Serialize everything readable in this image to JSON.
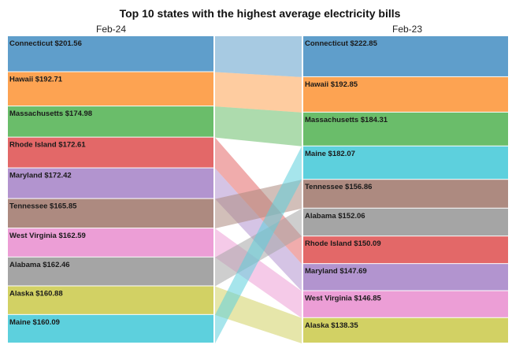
{
  "chart_data": {
    "type": "slope-ribbon",
    "title": "Top 10 states with the highest average electricity bills",
    "columns": [
      "Feb-24",
      "Feb-23"
    ],
    "left": [
      {
        "state": "Connecticut",
        "value": 201.56,
        "label": "Connecticut $201.56"
      },
      {
        "state": "Hawaii",
        "value": 192.71,
        "label": "Hawaii $192.71"
      },
      {
        "state": "Massachusetts",
        "value": 174.98,
        "label": "Massachusetts $174.98"
      },
      {
        "state": "Rhode Island",
        "value": 172.61,
        "label": "Rhode Island $172.61"
      },
      {
        "state": "Maryland",
        "value": 172.42,
        "label": "Maryland $172.42"
      },
      {
        "state": "Tennessee",
        "value": 165.85,
        "label": "Tennessee $165.85"
      },
      {
        "state": "West Virginia",
        "value": 162.59,
        "label": "West Virginia $162.59"
      },
      {
        "state": "Alabama",
        "value": 162.46,
        "label": "Alabama $162.46"
      },
      {
        "state": "Alaska",
        "value": 160.88,
        "label": "Alaska $160.88"
      },
      {
        "state": "Maine",
        "value": 160.09,
        "label": "Maine $160.09"
      }
    ],
    "right": [
      {
        "state": "Connecticut",
        "value": 222.85,
        "label": "Connecticut $222.85"
      },
      {
        "state": "Hawaii",
        "value": 192.85,
        "label": "Hawaii $192.85"
      },
      {
        "state": "Massachusetts",
        "value": 184.31,
        "label": "Massachusetts $184.31"
      },
      {
        "state": "Maine",
        "value": 182.07,
        "label": "Maine $182.07"
      },
      {
        "state": "Tennessee",
        "value": 156.86,
        "label": "Tennessee $156.86"
      },
      {
        "state": "Alabama",
        "value": 152.06,
        "label": "Alabama $152.06"
      },
      {
        "state": "Rhode Island",
        "value": 150.09,
        "label": "Rhode Island $150.09"
      },
      {
        "state": "Maryland",
        "value": 147.69,
        "label": "Maryland $147.69"
      },
      {
        "state": "West Virginia",
        "value": 146.85,
        "label": "West Virginia $146.85"
      },
      {
        "state": "Alaska",
        "value": 138.35,
        "label": "Alaska $138.35"
      }
    ],
    "colors": {
      "Connecticut": "#5f9ecb",
      "Hawaii": "#fda352",
      "Massachusetts": "#6abd6a",
      "Rhode Island": "#e36868",
      "Maryland": "#b294cf",
      "Tennessee": "#ad8a80",
      "West Virginia": "#ec9ed6",
      "Alabama": "#a5a5a5",
      "Alaska": "#d2d164",
      "Maine": "#5dd0dd"
    }
  }
}
